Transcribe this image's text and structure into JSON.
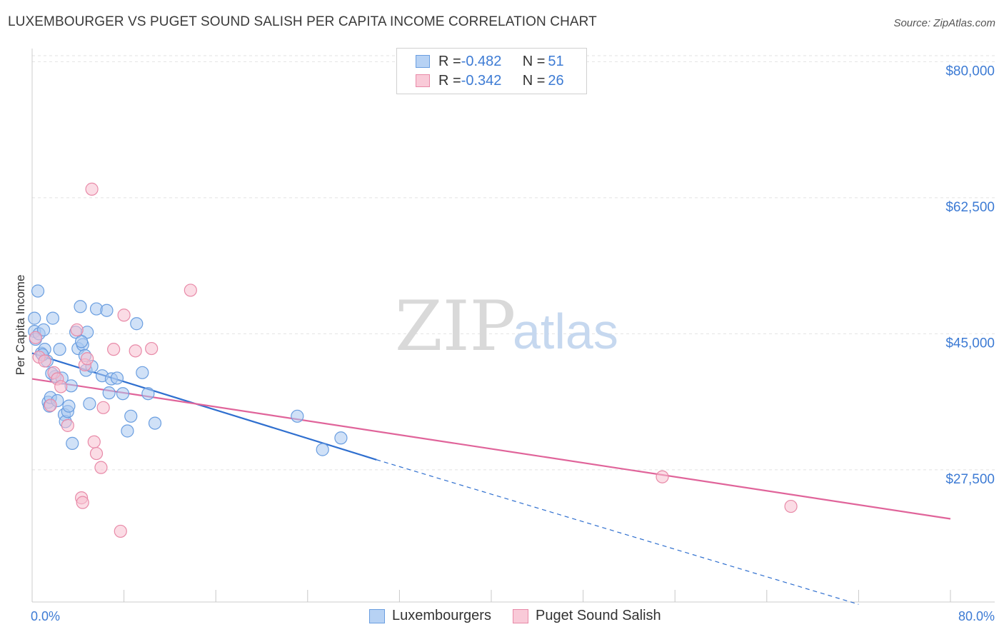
{
  "header": {
    "title": "LUXEMBOURGER VS PUGET SOUND SALISH PER CAPITA INCOME CORRELATION CHART",
    "source": "Source: ZipAtlas.com"
  },
  "watermark": {
    "zip": "ZIP",
    "atlas": "atlas"
  },
  "legend": {
    "series": [
      {
        "r_label": "R = ",
        "r_value": "-0.482",
        "n_label": "N = ",
        "n_value": "51",
        "color": "#a9c8f0",
        "border": "#6a9ee0"
      },
      {
        "r_label": "R = ",
        "r_value": "-0.342",
        "n_label": "N = ",
        "n_value": "26",
        "color": "#f7c0d0",
        "border": "#e88aa8"
      }
    ]
  },
  "bottom_legend": [
    "Luxembourgers",
    "Puget Sound Salish"
  ],
  "chart_data": {
    "type": "scatter",
    "title": "LUXEMBOURGER VS PUGET SOUND SALISH PER CAPITA INCOME CORRELATION CHART",
    "xlabel": "",
    "ylabel": "Per Capita Income",
    "xlim": [
      0,
      80
    ],
    "ylim": [
      10500,
      81500
    ],
    "x_tick_labels": [
      "0.0%",
      "80.0%"
    ],
    "y_ticks": [
      27500,
      45000,
      62500,
      80000
    ],
    "y_tick_labels": [
      "$27,500",
      "$45,000",
      "$62,500",
      "$80,000"
    ],
    "x_minor_ticks": [
      0,
      8,
      16,
      24,
      32,
      40,
      48,
      56,
      64,
      72,
      80
    ],
    "series": [
      {
        "name": "Luxembourgers",
        "color": "#6a9ee0",
        "fill": "#a9c8f0",
        "line_color": "#2f6fcf",
        "trend": {
          "x0": 0.0,
          "y0": 42500,
          "x1": 30.0,
          "y1": 28800,
          "dash_to_x": 72.0,
          "dash_to_y": 10200
        },
        "points": [
          [
            0.2,
            47000
          ],
          [
            0.2,
            45300
          ],
          [
            0.3,
            44300
          ],
          [
            0.5,
            50500
          ],
          [
            0.6,
            45000
          ],
          [
            0.8,
            42500
          ],
          [
            1.0,
            45500
          ],
          [
            1.1,
            43000
          ],
          [
            1.3,
            41500
          ],
          [
            1.4,
            36200
          ],
          [
            1.5,
            35700
          ],
          [
            1.6,
            36800
          ],
          [
            1.8,
            47000
          ],
          [
            2.0,
            39500
          ],
          [
            2.2,
            36400
          ],
          [
            2.4,
            43000
          ],
          [
            2.6,
            39300
          ],
          [
            2.8,
            34600
          ],
          [
            2.9,
            33700
          ],
          [
            3.1,
            35000
          ],
          [
            3.2,
            35700
          ],
          [
            3.4,
            38300
          ],
          [
            3.5,
            30900
          ],
          [
            3.8,
            45200
          ],
          [
            4.0,
            43100
          ],
          [
            4.2,
            48500
          ],
          [
            4.4,
            43600
          ],
          [
            4.6,
            42200
          ],
          [
            4.7,
            40300
          ],
          [
            4.8,
            45200
          ],
          [
            5.0,
            36000
          ],
          [
            5.2,
            40800
          ],
          [
            5.6,
            48200
          ],
          [
            6.1,
            39600
          ],
          [
            6.5,
            48000
          ],
          [
            6.7,
            37400
          ],
          [
            6.9,
            39200
          ],
          [
            7.4,
            39300
          ],
          [
            7.9,
            37300
          ],
          [
            8.3,
            32500
          ],
          [
            8.6,
            34400
          ],
          [
            9.1,
            46300
          ],
          [
            9.6,
            40000
          ],
          [
            10.1,
            37300
          ],
          [
            10.7,
            33500
          ],
          [
            23.1,
            34400
          ],
          [
            25.3,
            30100
          ],
          [
            26.9,
            31600
          ],
          [
            0.9,
            42300
          ],
          [
            1.7,
            39900
          ],
          [
            4.3,
            44000
          ]
        ]
      },
      {
        "name": "Puget Sound Salish",
        "color": "#e88aa8",
        "fill": "#f7c0d0",
        "line_color": "#e0649a",
        "trend": {
          "x0": 0.0,
          "y0": 39200,
          "x1": 80.0,
          "y1": 21200
        },
        "points": [
          [
            0.3,
            44500
          ],
          [
            0.6,
            42000
          ],
          [
            1.1,
            41500
          ],
          [
            1.6,
            35800
          ],
          [
            1.9,
            40000
          ],
          [
            2.2,
            39200
          ],
          [
            2.5,
            38200
          ],
          [
            3.1,
            33200
          ],
          [
            3.9,
            45500
          ],
          [
            4.3,
            23900
          ],
          [
            4.4,
            23300
          ],
          [
            4.6,
            41000
          ],
          [
            5.2,
            63600
          ],
          [
            5.4,
            31100
          ],
          [
            5.6,
            29600
          ],
          [
            6.0,
            27800
          ],
          [
            6.2,
            35500
          ],
          [
            7.1,
            43000
          ],
          [
            7.7,
            19600
          ],
          [
            8.0,
            47400
          ],
          [
            9.0,
            42800
          ],
          [
            10.4,
            43100
          ],
          [
            13.8,
            50600
          ],
          [
            54.9,
            26600
          ],
          [
            66.1,
            22800
          ],
          [
            4.8,
            41800
          ]
        ]
      }
    ]
  }
}
